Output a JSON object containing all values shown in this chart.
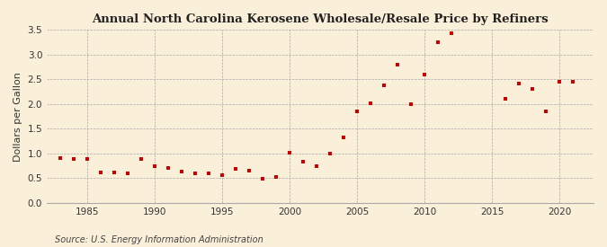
{
  "title": "Annual North Carolina Kerosene Wholesale/Resale Price by Refiners",
  "ylabel": "Dollars per Gallon",
  "source": "Source: U.S. Energy Information Administration",
  "background_color": "#faefd8",
  "years": [
    1983,
    1984,
    1985,
    1986,
    1987,
    1988,
    1989,
    1990,
    1991,
    1992,
    1993,
    1994,
    1995,
    1996,
    1997,
    1998,
    1999,
    2000,
    2001,
    2002,
    2003,
    2004,
    2005,
    2006,
    2007,
    2008,
    2009,
    2010,
    2011,
    2012,
    2016,
    2017,
    2018,
    2019,
    2020,
    2021
  ],
  "values": [
    0.9,
    0.88,
    0.88,
    0.62,
    0.62,
    0.6,
    0.88,
    0.75,
    0.7,
    0.63,
    0.6,
    0.6,
    0.57,
    0.68,
    0.65,
    0.49,
    0.53,
    1.01,
    0.83,
    0.74,
    0.99,
    1.32,
    1.86,
    2.01,
    2.38,
    2.8,
    2.0,
    2.6,
    3.26,
    3.43,
    2.11,
    2.42,
    2.3,
    1.85,
    2.45,
    2.45
  ],
  "marker_color": "#cc0000",
  "marker_size": 3.5,
  "ylim": [
    0.0,
    3.5
  ],
  "yticks": [
    0.0,
    0.5,
    1.0,
    1.5,
    2.0,
    2.5,
    3.0,
    3.5
  ],
  "xlim": [
    1982,
    2022.5
  ],
  "xticks": [
    1985,
    1990,
    1995,
    2000,
    2005,
    2010,
    2015,
    2020
  ]
}
